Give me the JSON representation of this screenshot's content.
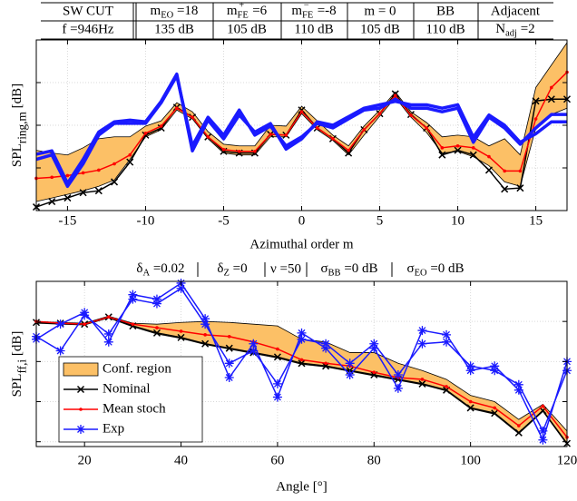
{
  "table": {
    "rows": [
      [
        "SW  CUT",
        {
          "text": "m",
          "sub": "EO",
          "after": " =18"
        },
        {
          "text": "m",
          "sub": "FE",
          "sup": "+",
          "after": " =6"
        },
        {
          "text": "m",
          "sub": "FE",
          "sup": "−",
          "after": " =-8"
        },
        "m = 0",
        "BB",
        "Adjacent"
      ],
      [
        "f =946Hz",
        "135 dB",
        "105 dB",
        "110 dB",
        "105 dB",
        "110 dB",
        {
          "text": "N",
          "sub": "adj",
          "after": " =2"
        }
      ]
    ]
  },
  "chart_data": [
    {
      "type": "line",
      "xlabel": "Azimuthal order m",
      "ylabel": {
        "text": "SPL",
        "sub": "ring,m",
        "after": " [dB]"
      },
      "x": [
        -17,
        -16,
        -15,
        -14,
        -13,
        -12,
        -11,
        -10,
        -9,
        -8,
        -7,
        -6,
        -5,
        -4,
        -3,
        -2,
        -1,
        0,
        1,
        2,
        3,
        4,
        5,
        6,
        7,
        8,
        9,
        10,
        11,
        12,
        13,
        14,
        15,
        16,
        17
      ],
      "xlim": [
        -17,
        17
      ],
      "xticks": [
        -15,
        -10,
        -5,
        0,
        5,
        10,
        15
      ],
      "ylim": [
        0,
        100
      ],
      "yticks": [
        0,
        25,
        50,
        75,
        100
      ],
      "grid": true,
      "band": {
        "name": "Conf. region",
        "color": "#fcc066",
        "upper": [
          35.3,
          33.7,
          32.6,
          36.8,
          42.1,
          43.2,
          43.2,
          49.5,
          52.6,
          63.2,
          57.9,
          46.3,
          38.9,
          37.9,
          37.9,
          50,
          49.5,
          61.1,
          52.6,
          44.2,
          37.9,
          49.5,
          58.9,
          69.5,
          57.9,
          51.6,
          43.2,
          44.2,
          43.2,
          37.9,
          42.1,
          32.6,
          72.1,
          85.3,
          98.4
        ],
        "lower": [
          5.3,
          7.4,
          9.5,
          11.6,
          14.2,
          17.9,
          30,
          43.2,
          47.4,
          58.9,
          53.7,
          42.1,
          33.7,
          32.6,
          32.6,
          43.2,
          43.2,
          56.8,
          47.4,
          41.1,
          32.6,
          44.2,
          55.3,
          66.3,
          54.7,
          45.8,
          33.7,
          34.7,
          31.6,
          26.3,
          16.8,
          14.2,
          48.4,
          56.3,
          60
        ]
      },
      "series": [
        {
          "name": "Nominal",
          "color": "#000000",
          "marker": "x",
          "width": 1.5,
          "values": [
            2.1,
            5.3,
            7.4,
            10.5,
            11.6,
            16.8,
            28.4,
            44.2,
            48.4,
            60.5,
            54.7,
            43.2,
            34.7,
            33.7,
            33.7,
            44.7,
            44.2,
            58.9,
            48.4,
            42.1,
            33.7,
            47.4,
            56.8,
            68.4,
            56.3,
            48.4,
            32.6,
            35.3,
            32.6,
            23.7,
            12.6,
            13.2,
            64.2,
            65.3,
            65.3
          ]
        },
        {
          "name": "Mean stoch",
          "color": "#ff0000",
          "marker": "dot",
          "width": 1.5,
          "values": [
            18.9,
            19.5,
            20.5,
            22.1,
            23.7,
            27.4,
            32.6,
            45.3,
            49.5,
            60,
            54.7,
            43.2,
            35.8,
            34.7,
            34.7,
            44.7,
            44.2,
            57.9,
            48.4,
            42.1,
            35.3,
            47.4,
            56.8,
            67.4,
            55.8,
            48.4,
            36.8,
            37.9,
            36.8,
            31.6,
            23.2,
            23.2,
            53.7,
            72.1,
            81.1
          ]
        },
        {
          "name": "Exp",
          "color": "#1a1aff",
          "marker": "none",
          "width": 3.5,
          "values": [
            30,
            32.6,
            14.2,
            27.4,
            44.2,
            51.1,
            51.1,
            51.1,
            63.2,
            78.9,
            37.9,
            54.7,
            44.2,
            58.9,
            44.2,
            49.5,
            37.9,
            43.2,
            51.1,
            48.4,
            53.7,
            58.9,
            60,
            65.3,
            60,
            60,
            57.9,
            60,
            40,
            54.7,
            48.4,
            38.9,
            48.4,
            56.3,
            56.3
          ]
        },
        {
          "name": "Exp",
          "color": "#1a1aff",
          "marker": "none",
          "width": 3.5,
          "values": [
            33,
            35,
            16,
            30,
            46,
            52,
            53,
            52,
            64,
            80,
            35,
            53,
            42,
            56,
            46,
            51,
            36,
            42,
            52,
            50,
            55,
            60,
            62,
            64,
            62,
            62,
            60,
            62,
            43,
            56,
            50,
            40,
            45,
            52,
            52
          ]
        }
      ]
    },
    {
      "type": "line",
      "subtitle": [
        {
          "text": "δ",
          "sub": "A",
          "after": " =0.02"
        },
        {
          "text": "δ",
          "sub": "Z",
          "after": " =0"
        },
        "ν =50",
        {
          "text": "σ",
          "sub": "BB",
          "after": " =0 dB"
        },
        {
          "text": "σ",
          "sub": "EO",
          "after": " =0 dB"
        }
      ],
      "xlabel": "Angle [°]",
      "ylabel": {
        "text": "SPL",
        "sub": "ff,i",
        "after": " [dB]"
      },
      "x": [
        10,
        15,
        20,
        25,
        30,
        35,
        40,
        45,
        50,
        55,
        60,
        65,
        70,
        75,
        80,
        85,
        90,
        95,
        100,
        105,
        110,
        115,
        120
      ],
      "xlim": [
        10,
        120
      ],
      "xticks": [
        20,
        40,
        60,
        80,
        100,
        120
      ],
      "ylim": [
        -3,
        100
      ],
      "yticks": [
        0,
        25,
        50,
        75,
        100
      ],
      "grid": true,
      "legend": "lower left",
      "band": {
        "name": "Conf. region",
        "color": "#fcc066",
        "upper": [
          75,
          74.4,
          73.9,
          78.3,
          73.9,
          73.3,
          74.4,
          75,
          74.4,
          73.3,
          72.2,
          63.9,
          62.2,
          55.6,
          55.6,
          48.9,
          44.4,
          38.9,
          28.9,
          25,
          13.9,
          23.3,
          6.7
        ],
        "lower": [
          73.9,
          73.3,
          72.8,
          77.2,
          71.7,
          67.2,
          64.4,
          60.6,
          57.8,
          55,
          52.2,
          48.3,
          46.7,
          43.9,
          41.1,
          38.3,
          35.6,
          31.7,
          20.6,
          17.2,
          5,
          18.9,
          -1.7
        ]
      },
      "series": [
        {
          "name": "Nominal",
          "color": "#000000",
          "marker": "x",
          "width": 1.5,
          "values": [
            74.4,
            73.9,
            73.3,
            77.8,
            72.2,
            67.8,
            65,
            61.1,
            58.3,
            55.6,
            52.8,
            48.9,
            47.2,
            44.4,
            41.7,
            38.9,
            36.1,
            32.2,
            21.1,
            17.8,
            5.6,
            19.4,
            -1.1
          ]
        },
        {
          "name": "Mean stoch",
          "color": "#ff0000",
          "marker": "dot",
          "width": 1.5,
          "values": [
            75,
            73.9,
            73.3,
            77.8,
            73.3,
            71.1,
            68.9,
            66.7,
            65.6,
            62.2,
            57.8,
            51.1,
            48.9,
            47.2,
            43.3,
            40,
            38.9,
            34.4,
            25,
            21.1,
            10,
            22.2,
            2.8
          ]
        },
        {
          "name": "Exp",
          "color": "#1a1aff",
          "marker": "star",
          "width": 1.5,
          "values": [
            63.9,
            73.3,
            80.6,
            62.2,
            91.7,
            88.9,
            98.9,
            76.7,
            40,
            61.1,
            27.8,
            67.8,
            58.3,
            41.7,
            58.3,
            33.3,
            69.4,
            66.7,
            44.4,
            47.2,
            32.2,
            1.1,
            50
          ]
        },
        {
          "name": "Exp",
          "color": "#1a1aff",
          "marker": "star",
          "width": 1.5,
          "values": [
            65.6,
            56.7,
            78.9,
            67.2,
            88.9,
            86.1,
            95.6,
            73.3,
            48.9,
            56.7,
            36.1,
            63.9,
            61.1,
            48.9,
            61.1,
            41.7,
            61.1,
            62.2,
            47.2,
            44.4,
            35.6,
            6.7,
            44.4
          ]
        }
      ]
    }
  ]
}
